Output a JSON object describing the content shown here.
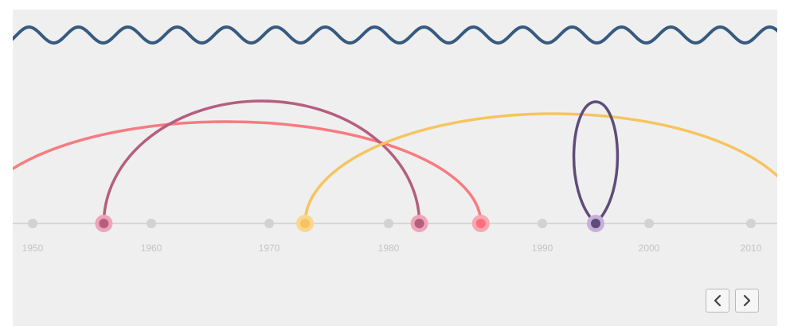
{
  "timeline": {
    "colors": {
      "wave": "#375a7f",
      "axis": "#d6d6d6",
      "tick_dot": "#d2d2d2",
      "tick_label": "#c4c4c4"
    },
    "ticks": [
      {
        "year": 1950,
        "label": "1950"
      },
      {
        "year": 1960,
        "label": "1960"
      },
      {
        "year": 1970,
        "label": "1970"
      },
      {
        "year": 1980,
        "label": "1980"
      },
      {
        "year": 1990,
        "label": "1990"
      },
      {
        "year": 2000,
        "label": "2000"
      },
      {
        "year": 2010,
        "label": "2010"
      }
    ],
    "events": [
      {
        "name": "event-1956",
        "year": 1956,
        "fill": "#b55e7f",
        "halo": "#f0a4b8"
      },
      {
        "name": "event-1973",
        "year": 1973,
        "fill": "#f6c45f",
        "halo": "#fad78f"
      },
      {
        "name": "event-1982",
        "year": 1982,
        "fill": "#b55e7f",
        "halo": "#f0a4b8"
      },
      {
        "name": "event-1986",
        "year": 1986,
        "fill": "#ff6e7c",
        "halo": "#f7a8b0"
      },
      {
        "name": "event-1995",
        "year": 1995,
        "fill": "#5f4c79",
        "halo": "#c7afdc"
      }
    ],
    "arcs": [
      {
        "name": "arc-coral",
        "from_year": 1945,
        "to_year": 1986,
        "color": "#f77b80",
        "shape": "arc"
      },
      {
        "name": "arc-mauve",
        "from_year": 1956,
        "to_year": 1982,
        "color": "#b55e7f",
        "shape": "arc"
      },
      {
        "name": "arc-gold",
        "from_year": 1973,
        "to_year": 2015,
        "color": "#f6c45f",
        "shape": "arc"
      },
      {
        "name": "arc-purple-loop",
        "from_year": 1995,
        "to_year": 1995,
        "color": "#5f4c79",
        "shape": "loop"
      }
    ],
    "nav": {
      "prev_icon": "chevron-left-icon",
      "next_icon": "chevron-right-icon"
    }
  }
}
